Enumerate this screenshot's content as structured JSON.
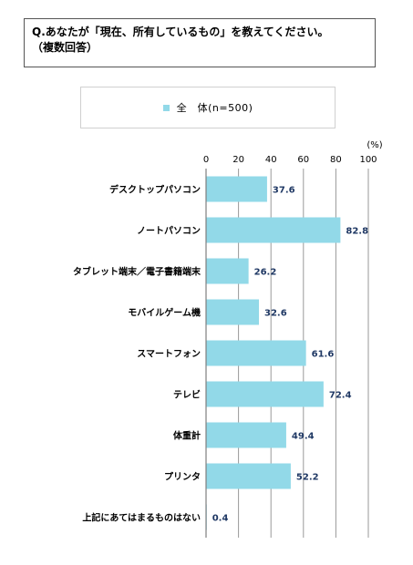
{
  "question": {
    "line1": "Q.あなたが「現在、所有しているもの」を教えてください。",
    "line2": "（複数回答）"
  },
  "colors": {
    "bar": "#92d9e8",
    "grid": "#999999",
    "axis": "#7f7f7f",
    "value_text": "#1f3864"
  },
  "chart_data": {
    "type": "bar",
    "orientation": "horizontal",
    "title": "",
    "xlabel": "",
    "ylabel": "",
    "unit": "(%)",
    "xlim": [
      0,
      100
    ],
    "ticks": [
      0,
      20,
      40,
      60,
      80,
      100
    ],
    "grid": true,
    "legend_position": "top",
    "categories": [
      "デスクトップパソコン",
      "ノートパソコン",
      "タブレット端末／電子書籍端末",
      "モバイルゲーム機",
      "スマートフォン",
      "テレビ",
      "体重計",
      "プリンタ",
      "上記にあてはまるものはない"
    ],
    "series": [
      {
        "name": "全　体(n=500)",
        "values": [
          37.6,
          82.8,
          26.2,
          32.6,
          61.6,
          72.4,
          49.4,
          52.2,
          0.4
        ]
      }
    ]
  }
}
